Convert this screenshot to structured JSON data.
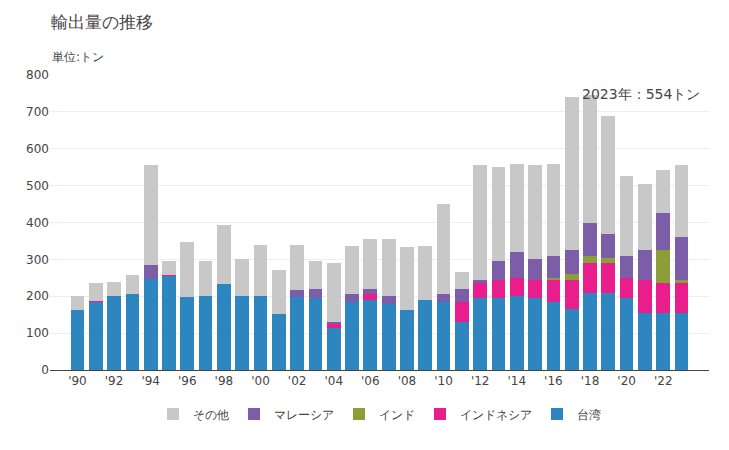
{
  "chart_data": {
    "type": "bar",
    "stacked": true,
    "title": "輸出量の推移",
    "ylabel": "単位:トン",
    "annotation": "2023年：554トン",
    "x": [
      1990,
      1991,
      1992,
      1993,
      1994,
      1995,
      1996,
      1997,
      1998,
      1999,
      2000,
      2001,
      2002,
      2003,
      2004,
      2005,
      2006,
      2007,
      2008,
      2009,
      2010,
      2011,
      2012,
      2013,
      2014,
      2015,
      2016,
      2017,
      2018,
      2019,
      2020,
      2021,
      2022,
      2023
    ],
    "series": [
      {
        "name": "台湾",
        "color": "#2E86C1",
        "values": [
          163,
          185,
          200,
          205,
          248,
          255,
          198,
          200,
          234,
          200,
          200,
          152,
          198,
          195,
          115,
          185,
          190,
          180,
          163,
          190,
          185,
          130,
          195,
          195,
          200,
          195,
          185,
          165,
          210,
          210,
          195,
          155,
          155,
          155
        ]
      },
      {
        "name": "インドネシア",
        "color": "#E91E8C",
        "values": [
          0,
          2,
          0,
          0,
          0,
          2,
          0,
          0,
          0,
          0,
          0,
          0,
          0,
          0,
          10,
          0,
          15,
          0,
          0,
          0,
          0,
          55,
          40,
          50,
          50,
          50,
          60,
          80,
          80,
          80,
          55,
          90,
          80,
          80
        ]
      },
      {
        "name": "インド",
        "color": "#8B9E3A",
        "values": [
          0,
          0,
          0,
          0,
          0,
          0,
          0,
          0,
          0,
          0,
          0,
          0,
          0,
          0,
          0,
          0,
          0,
          0,
          0,
          0,
          0,
          0,
          0,
          0,
          0,
          0,
          5,
          15,
          20,
          15,
          0,
          0,
          90,
          10
        ]
      },
      {
        "name": "マレーシア",
        "color": "#7B5EA7",
        "values": [
          0,
          0,
          0,
          0,
          38,
          0,
          0,
          0,
          0,
          0,
          0,
          0,
          20,
          25,
          5,
          20,
          15,
          20,
          0,
          0,
          20,
          35,
          10,
          50,
          70,
          55,
          60,
          65,
          90,
          65,
          60,
          80,
          100,
          115
        ]
      },
      {
        "name": "その他",
        "color": "#C8C8C8",
        "values": [
          38,
          50,
          38,
          52,
          270,
          38,
          150,
          95,
          160,
          100,
          140,
          120,
          120,
          75,
          160,
          130,
          135,
          155,
          170,
          145,
          245,
          45,
          310,
          255,
          240,
          255,
          250,
          415,
          345,
          320,
          215,
          180,
          118,
          195
        ]
      }
    ],
    "xlim": [
      1988.5,
      2024.5
    ],
    "xticks": [
      {
        "value": 1990,
        "label": "'90"
      },
      {
        "value": 1992,
        "label": "'92"
      },
      {
        "value": 1994,
        "label": "'94"
      },
      {
        "value": 1996,
        "label": "'96"
      },
      {
        "value": 1998,
        "label": "'98"
      },
      {
        "value": 2000,
        "label": "'00"
      },
      {
        "value": 2002,
        "label": "'02"
      },
      {
        "value": 2004,
        "label": "'04"
      },
      {
        "value": 2006,
        "label": "'06"
      },
      {
        "value": 2008,
        "label": "'08"
      },
      {
        "value": 2010,
        "label": "'10"
      },
      {
        "value": 2012,
        "label": "'12"
      },
      {
        "value": 2014,
        "label": "'14"
      },
      {
        "value": 2016,
        "label": "'16"
      },
      {
        "value": 2018,
        "label": "'18"
      },
      {
        "value": 2020,
        "label": "'20"
      },
      {
        "value": 2022,
        "label": "'22"
      }
    ],
    "ylim": [
      0,
      800
    ],
    "yticks": [
      0,
      100,
      200,
      300,
      400,
      500,
      600,
      700,
      800
    ],
    "grid": "y",
    "legend": "bottom"
  }
}
